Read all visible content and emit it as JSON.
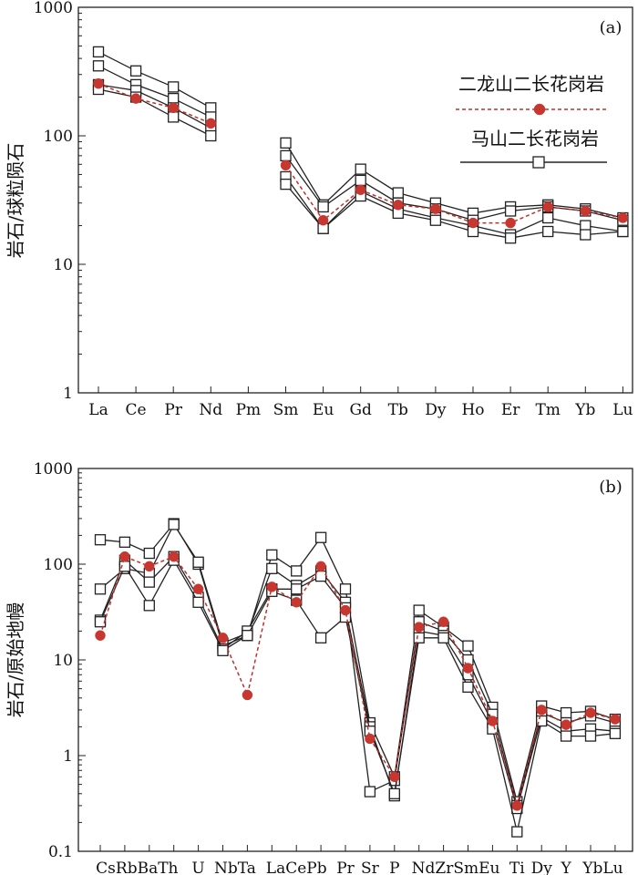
{
  "chart_data": [
    {
      "type": "line",
      "panel_label": "(a)",
      "ylabel": "岩石/球粒陨石",
      "yscale": "log",
      "ylim": [
        1,
        1000
      ],
      "yticks": [
        "1",
        "10",
        "100",
        "1000"
      ],
      "categories": [
        "La",
        "Ce",
        "Pr",
        "Nd",
        "Pm",
        "Sm",
        "Eu",
        "Gd",
        "Tb",
        "Dy",
        "Ho",
        "Er",
        "Tm",
        "Yb",
        "Lu"
      ],
      "legend": [
        "二龙山二长花岗岩",
        "马山二长花岗岩"
      ],
      "series": [
        {
          "name": "马山二长花岗岩",
          "group": "mashan",
          "values": [
            450,
            320,
            240,
            165,
            null,
            88,
            29,
            55,
            36,
            30,
            25,
            28,
            29,
            27,
            23
          ]
        },
        {
          "name": "马山二长花岗岩",
          "group": "mashan",
          "values": [
            350,
            250,
            195,
            140,
            null,
            70,
            28,
            45,
            30,
            27,
            22,
            26,
            28,
            26,
            22
          ]
        },
        {
          "name": "马山二长花岗岩",
          "group": "mashan",
          "values": [
            250,
            225,
            165,
            115,
            null,
            48,
            19,
            37,
            27,
            23,
            20,
            17,
            23,
            20,
            18
          ]
        },
        {
          "name": "马山二长花岗岩",
          "group": "mashan",
          "values": [
            230,
            200,
            140,
            100,
            null,
            42,
            19,
            34,
            25,
            22,
            18,
            16,
            18,
            17,
            18
          ]
        },
        {
          "name": "二龙山二长花岗岩",
          "group": "erlongshan",
          "values": [
            255,
            195,
            165,
            125,
            null,
            59,
            22,
            38,
            29,
            27,
            21,
            21,
            28,
            26,
            23
          ]
        }
      ]
    },
    {
      "type": "line",
      "panel_label": "(b)",
      "ylabel": "岩石/原始地幔",
      "yscale": "log",
      "ylim": [
        0.1,
        1000
      ],
      "yticks": [
        "0.1",
        "1",
        "10",
        "100",
        "1000"
      ],
      "categories": [
        "Cs",
        "Rb",
        "Ba",
        "Th",
        "U",
        "Nb",
        "Ta",
        "La",
        "Ce",
        "Pb",
        "Pr",
        "Sr",
        "P",
        "Nd",
        "Zr",
        "Sm",
        "Eu",
        "Ti",
        "Dy",
        "Y",
        "Yb",
        "Lu"
      ],
      "tick_label_groups": [
        "CsRbBaTh",
        "U",
        "NbTa",
        "LaCePb",
        "Pr",
        "Sr",
        "P",
        "NdZrSmEu",
        "Ti",
        "Dy",
        "Y",
        "YbLu"
      ],
      "series": [
        {
          "name": "马山二长花岗岩",
          "group": "mashan",
          "values": [
            180,
            170,
            130,
            265,
            100,
            14,
            18,
            125,
            85,
            190,
            55,
            2.2,
            0.6,
            33,
            22,
            14,
            3.2,
            0.33,
            3.3,
            2.8,
            2.9,
            2.4
          ]
        },
        {
          "name": "马山二长花岗岩",
          "group": "mashan",
          "values": [
            55,
            90,
            80,
            260,
            105,
            15,
            19,
            90,
            60,
            85,
            40,
            0.42,
            0.55,
            25,
            20,
            10,
            2.7,
            0.3,
            2.8,
            2.2,
            2.6,
            2.2
          ]
        },
        {
          "name": "马山二长花岗岩",
          "group": "mashan",
          "values": [
            26,
            110,
            65,
            120,
            45,
            13,
            20,
            55,
            55,
            75,
            35,
            2.0,
            0.38,
            20,
            18,
            7,
            2.2,
            0.28,
            2.5,
            1.8,
            1.9,
            1.8
          ]
        },
        {
          "name": "马山二长花岗岩",
          "group": "mashan",
          "values": [
            25,
            95,
            37,
            110,
            40,
            12.5,
            18,
            52,
            42,
            17,
            28,
            1.8,
            0.4,
            17,
            17,
            5.2,
            1.9,
            0.16,
            2.3,
            1.6,
            1.6,
            1.7
          ]
        },
        {
          "name": "二龙山二长花岗岩",
          "group": "erlongshan",
          "values": [
            18,
            120,
            95,
            120,
            55,
            17,
            4.3,
            58,
            40,
            95,
            33,
            1.5,
            0.6,
            22,
            25,
            8.2,
            2.3,
            0.3,
            3.0,
            2.1,
            2.8,
            2.4
          ]
        }
      ]
    }
  ]
}
